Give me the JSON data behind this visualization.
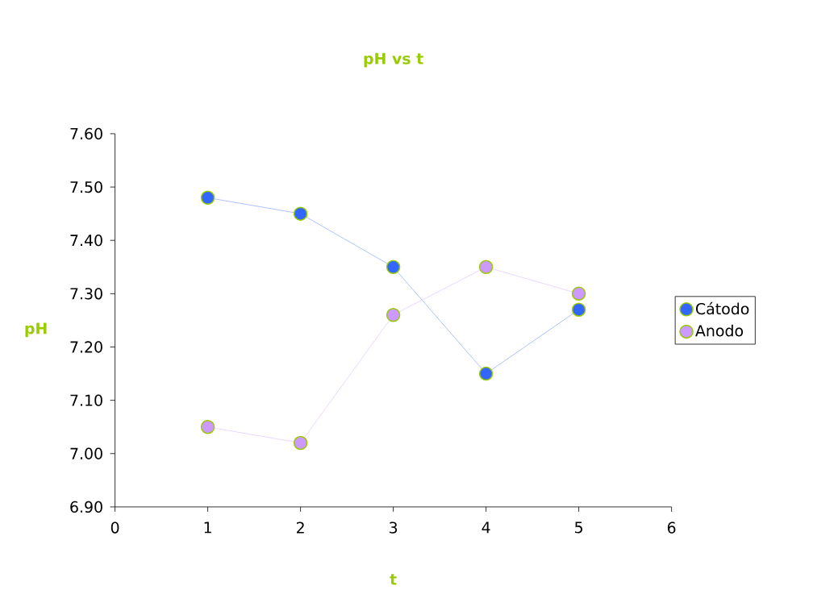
{
  "chart_data": {
    "type": "line",
    "title": "pH vs t",
    "xlabel": "t",
    "ylabel": "pH",
    "x": [
      1,
      2,
      3,
      4,
      5
    ],
    "series": [
      {
        "name": "Cátodo",
        "color": "#3366ff",
        "values": [
          7.48,
          7.45,
          7.35,
          7.15,
          7.27
        ]
      },
      {
        "name": "Anodo",
        "color": "#cc99ff",
        "values": [
          7.05,
          7.02,
          7.26,
          7.35,
          7.3
        ]
      }
    ],
    "xlim": [
      0,
      6
    ],
    "xticks": [
      0,
      1,
      2,
      3,
      4,
      5,
      6
    ],
    "ylim": [
      6.9,
      7.6
    ],
    "yticks": [
      {
        "value": 6.9,
        "label": "6.90"
      },
      {
        "value": 7.0,
        "label": "7.00"
      },
      {
        "value": 7.1,
        "label": "7.10"
      },
      {
        "value": 7.2,
        "label": "7.20"
      },
      {
        "value": 7.3,
        "label": "7.30"
      },
      {
        "value": 7.4,
        "label": "7.40"
      },
      {
        "value": 7.5,
        "label": "7.50"
      },
      {
        "value": 7.6,
        "label": "7.60"
      }
    ],
    "grid": false,
    "legend": "right",
    "marker": "circle",
    "line_style": "solid"
  }
}
